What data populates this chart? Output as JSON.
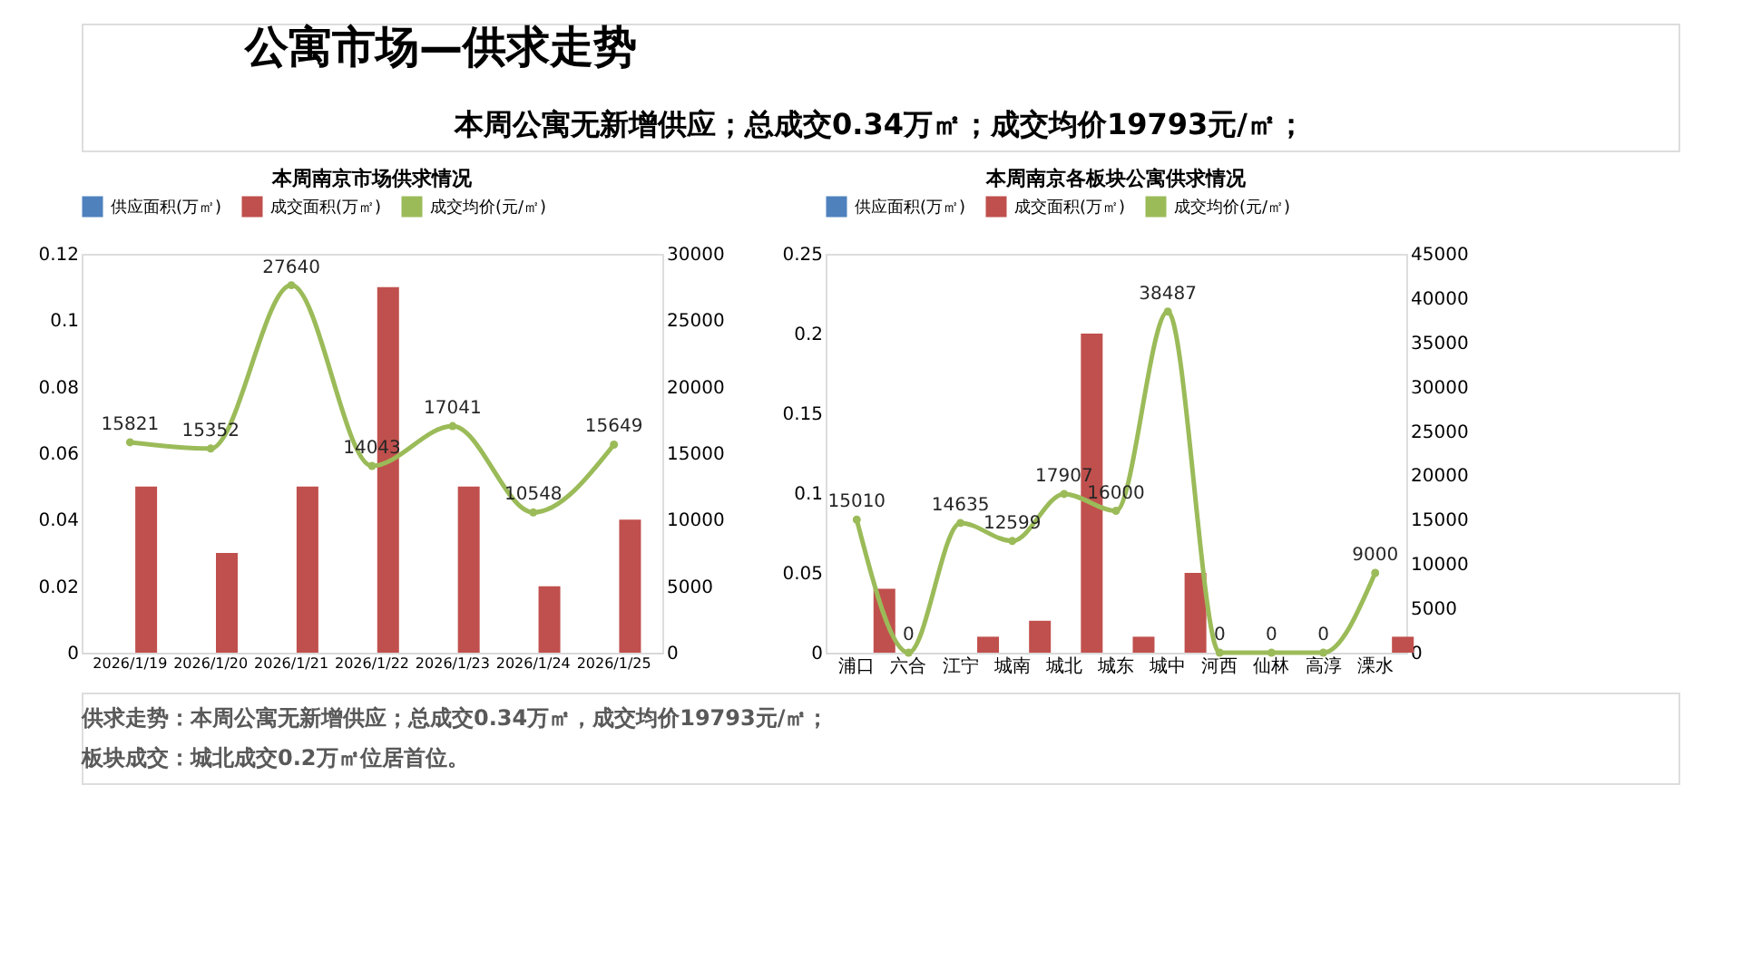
{
  "chart_data": [
    {
      "type": "bar",
      "title": "本周南京市场供求情况",
      "annotations": [
        "公寓市场—供求走势",
        "本周公寓无新增供应；总成交0.34万㎡；成交均价19793元/㎡；",
        "供求走势：本周公寓无新增供应；总成交0.34万㎡，成交均价19793元/㎡；",
        "板块成交：城北成交0.2万㎡位居首位。"
      ],
      "categories": [
        "2026/1/19",
        "2026/1/20",
        "2026/1/21",
        "2026/1/22",
        "2026/1/23",
        "2026/1/24",
        "2026/1/25"
      ],
      "series": [
        {
          "name": "供应面积(万㎡)",
          "color": "#4f81bd",
          "values": [
            0,
            0,
            0,
            0,
            0,
            0,
            0
          ]
        },
        {
          "name": "成交面积(万㎡)",
          "color": "#c0504d",
          "values": [
            0.05,
            0.03,
            0.05,
            0.11,
            0.05,
            0.02,
            0.04
          ]
        },
        {
          "name": "成交均价(元/㎡)",
          "type": "line",
          "axis": "y2",
          "color": "#9bbb59",
          "marker": "circle",
          "values": [
            15821,
            15352,
            27640,
            14043,
            17041,
            10548,
            15649
          ],
          "value_labels": [
            "15821",
            "15352",
            "27640",
            "14043",
            "17041",
            "10548",
            "15649"
          ]
        }
      ],
      "ylim": [
        0,
        0.12
      ],
      "yticks": [
        0,
        0.02,
        0.04,
        0.06,
        0.08,
        0.1,
        0.12
      ],
      "y2lim": [
        0,
        30000
      ],
      "y2ticks": [
        0,
        5000,
        10000,
        15000,
        20000,
        25000,
        30000
      ],
      "grid": false,
      "legend": "top"
    },
    {
      "type": "bar",
      "title": "本周南京各板块公寓供求情况",
      "categories": [
        "浦口",
        "六合",
        "江宁",
        "城南",
        "城北",
        "城东",
        "城中",
        "河西",
        "仙林",
        "高淳",
        "溧水"
      ],
      "series": [
        {
          "name": "供应面积(万㎡)",
          "color": "#4f81bd",
          "values": [
            0,
            0,
            0,
            0,
            0,
            0,
            0,
            0,
            0,
            0,
            0
          ]
        },
        {
          "name": "成交面积(万㎡)",
          "color": "#c0504d",
          "values": [
            0.04,
            0,
            0.01,
            0.02,
            0.2,
            0.01,
            0.05,
            0,
            0,
            0,
            0.01
          ]
        },
        {
          "name": "成交均价(元/㎡)",
          "type": "line",
          "axis": "y2",
          "color": "#9bbb59",
          "marker": "circle",
          "values": [
            15010,
            0,
            14635,
            12599,
            17907,
            16000,
            38487,
            0,
            0,
            0,
            9000
          ],
          "value_labels": [
            "15010",
            "0",
            "14635",
            "12599",
            "17907",
            "16000",
            "38487",
            "0",
            "0",
            "0",
            "9000"
          ]
        }
      ],
      "ylim": [
        0,
        0.25
      ],
      "yticks": [
        0,
        0.05,
        0.1,
        0.15,
        0.2,
        0.25
      ],
      "y2lim": [
        0,
        45000
      ],
      "y2ticks": [
        0,
        5000,
        10000,
        15000,
        20000,
        25000,
        30000,
        35000,
        40000,
        45000
      ],
      "grid": false,
      "legend": "top"
    }
  ]
}
